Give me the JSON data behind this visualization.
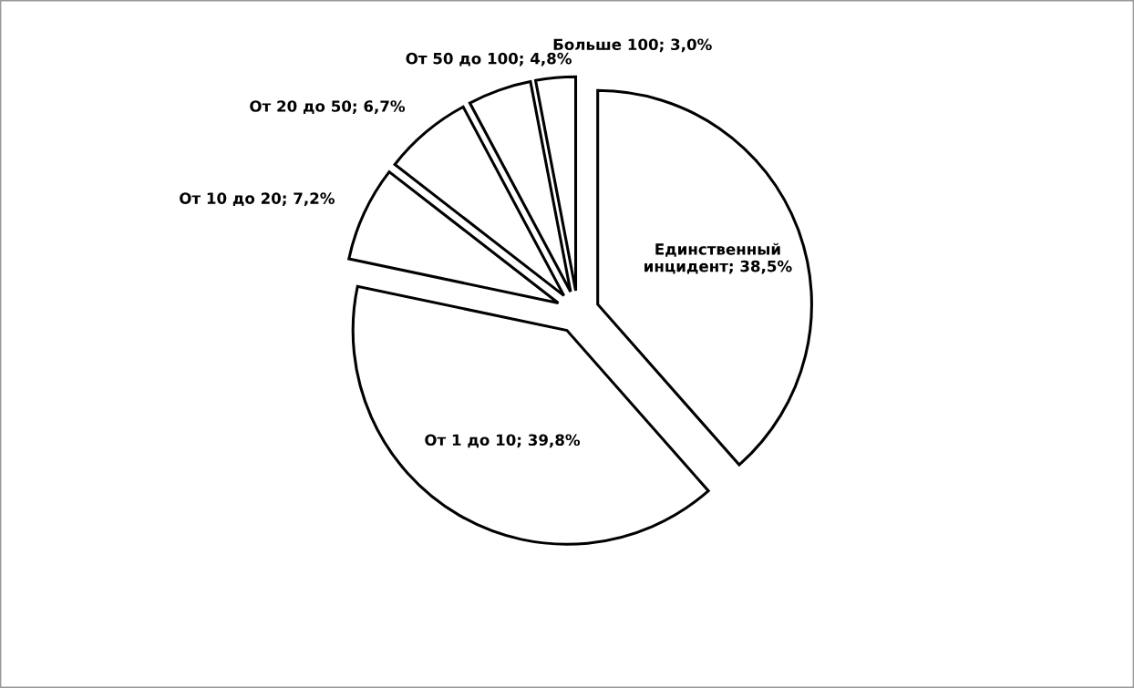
{
  "chart_data": {
    "type": "pie",
    "categories": [
      "Единственный инцидент",
      "От 1 до 10",
      "От 10 до 20",
      "От 20 до 50",
      "От 50 до 100",
      "Больше 100"
    ],
    "values": [
      38.5,
      39.8,
      7.2,
      6.7,
      4.8,
      3.0
    ],
    "value_labels": [
      "38,5%",
      "39,8%",
      "7,2%",
      "6,7%",
      "4,8%",
      "3,0%"
    ],
    "colors": [
      "#ffffff",
      "#ffffff",
      "#ffffff",
      "#ffffff",
      "#ffffff",
      "#ffffff"
    ],
    "legend": false
  }
}
